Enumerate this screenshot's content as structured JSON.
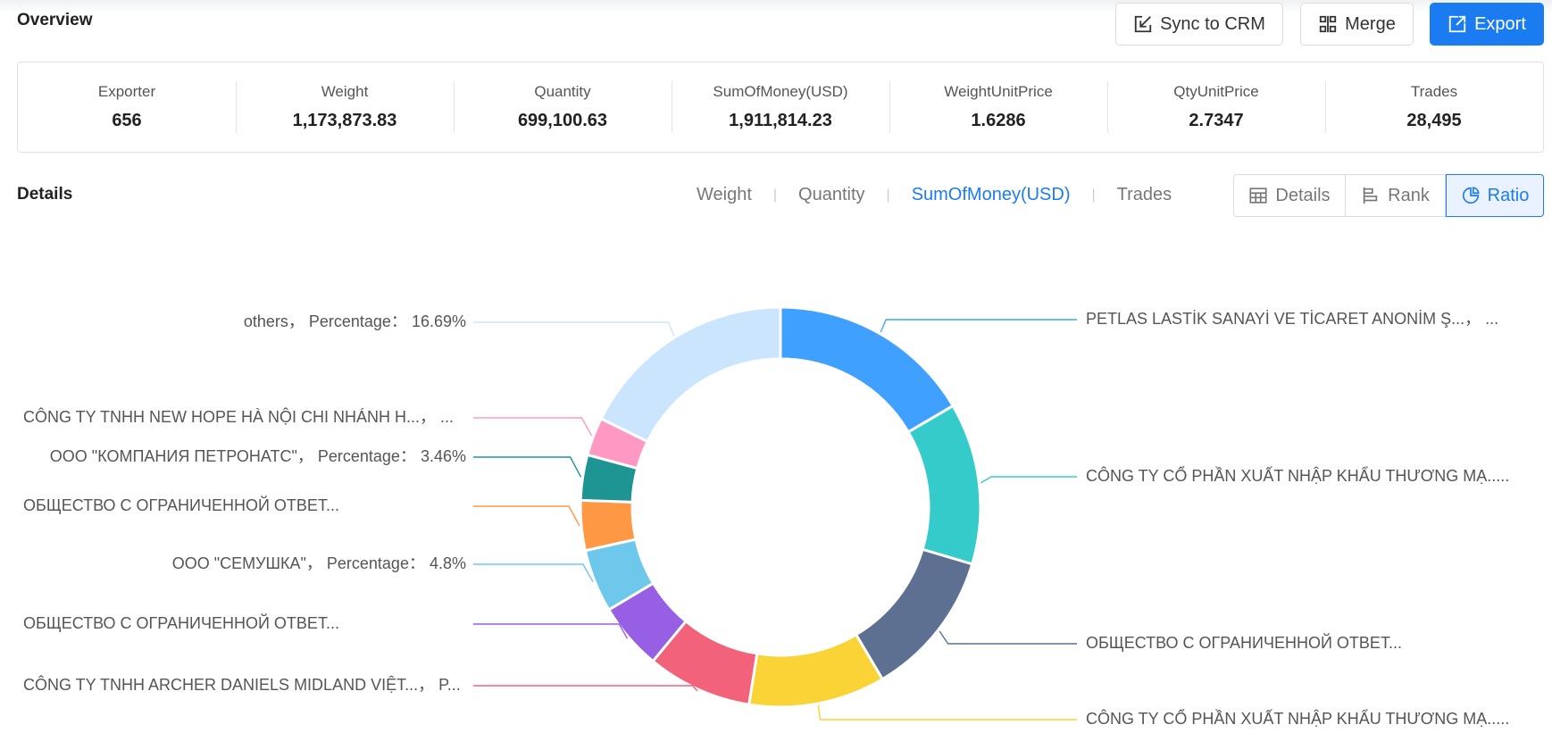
{
  "overview": {
    "title": "Overview"
  },
  "toolbar": {
    "sync_label": "Sync to CRM",
    "merge_label": "Merge",
    "export_label": "Export"
  },
  "stats": [
    {
      "label": "Exporter",
      "value": "656"
    },
    {
      "label": "Weight",
      "value": "1,173,873.83"
    },
    {
      "label": "Quantity",
      "value": "699,100.63"
    },
    {
      "label": "SumOfMoney(USD)",
      "value": "1,911,814.23"
    },
    {
      "label": "WeightUnitPrice",
      "value": "1.6286"
    },
    {
      "label": "QtyUnitPrice",
      "value": "2.7347"
    },
    {
      "label": "Trades",
      "value": "28,495"
    }
  ],
  "details": {
    "title": "Details",
    "metric_tabs": [
      "Weight",
      "Quantity",
      "SumOfMoney(USD)",
      "Trades"
    ],
    "active_metric": "SumOfMoney(USD)",
    "views": {
      "details": "Details",
      "rank": "Rank",
      "ratio": "Ratio"
    }
  },
  "colors": {
    "accent": "#1a7cf0"
  },
  "chart_data": {
    "type": "pie",
    "variant": "donut",
    "slices": [
      {
        "label": "PETLAS LASTİK SANAYİ VE TİCARET ANONİM Ş...，  ...",
        "value": 15.6,
        "color": "#3fa0ff"
      },
      {
        "label": "CÔNG TY CỔ PHẦN XUẤT NHẬP KHẨU THƯƠNG MẠ.....",
        "value": 12.3,
        "color": "#36cbcb"
      },
      {
        "label": "ОБЩЕСТВО С ОГРАНИЧЕННОЙ ОТВЕТ...",
        "value": 11.2,
        "color": "#5d7092"
      },
      {
        "label": "CÔNG TY CỔ PHẦN XUẤT NHẬP KHẨU THƯƠNG MẠ.....",
        "value": 10.4,
        "color": "#fad337"
      },
      {
        "label": "CÔNG TY TNHH ARCHER DANIELS MIDLAND VIỆT...，  P...",
        "value": 8.0,
        "color": "#f2637b"
      },
      {
        "label": "ОБЩЕСТВО С ОГРАНИЧЕННОЙ ОТВЕТ...",
        "value": 5.1,
        "color": "#975fe4"
      },
      {
        "label": "ООО \"СЕМУШКА\"，  Percentage：  4.8%",
        "value": 4.8,
        "color": "#6dc8ec"
      },
      {
        "label": "ОБЩЕСТВО С ОГРАНИЧЕННОЙ ОТВЕТ...",
        "value": 3.8,
        "color": "#ff9845"
      },
      {
        "label": "ООО \"КОМПАНИЯ ПЕТРОНАТС\"，  Percentage：  3.46%",
        "value": 3.46,
        "color": "#1e9493"
      },
      {
        "label": "CÔNG TY TNHH NEW HOPE HÀ NỘI CHI NHÁNH H...，  ...",
        "value": 2.9,
        "color": "#ff99c3"
      },
      {
        "label": "others，  Percentage：  16.69%",
        "value": 16.69,
        "color": "#cce5ff"
      }
    ]
  }
}
